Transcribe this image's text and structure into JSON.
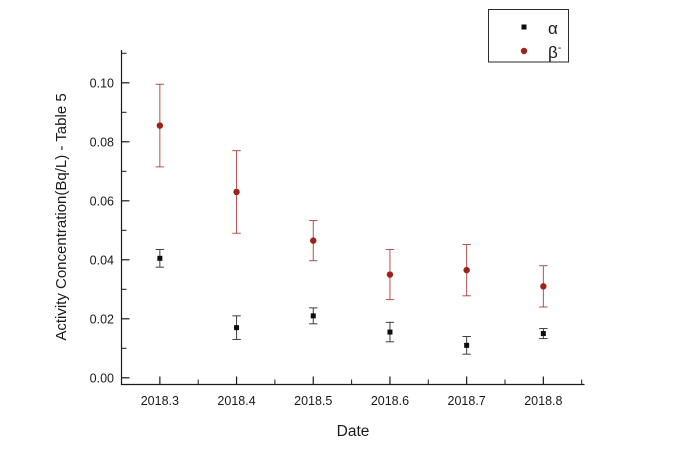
{
  "figure": {
    "background": "#ffffff",
    "axis_color": "#1a1a1a",
    "alpha_marker_color": "#0d0d0d",
    "alpha_error_color": "#3f3f3f",
    "beta_marker_color": "#9e211b",
    "beta_error_color": "#b0524a"
  },
  "chart_data": {
    "type": "scatter",
    "title": "",
    "xlabel": "Date",
    "ylabel": "Activity Concentration(Bq/L) - Table 5",
    "x_tick_labels": [
      "2018.3",
      "2018.4",
      "2018.5",
      "2018.6",
      "2018.7",
      "2018.8"
    ],
    "x_ticks": [
      2018.3,
      2018.4,
      2018.5,
      2018.6,
      2018.7,
      2018.8
    ],
    "x_minor_ticks": [
      2018.35,
      2018.45,
      2018.55,
      2018.65,
      2018.75,
      2018.85
    ],
    "y_tick_labels": [
      "0.00",
      "0.02",
      "0.04",
      "0.06",
      "0.08",
      "0.10"
    ],
    "y_ticks": [
      0.0,
      0.02,
      0.04,
      0.06,
      0.08,
      0.1
    ],
    "y_minor_ticks": [
      0.01,
      0.03,
      0.05,
      0.07,
      0.09,
      0.11
    ],
    "xlim": [
      2018.25,
      2018.855
    ],
    "ylim": [
      -0.0025,
      0.1115
    ],
    "grid": false,
    "legend_position": "top-right-outside",
    "categories": [
      2018.3,
      2018.4,
      2018.5,
      2018.6,
      2018.7,
      2018.8
    ],
    "series": [
      {
        "name": "α",
        "marker": "square",
        "color": "#0d0d0d",
        "error_color": "#3f3f3f",
        "y": [
          0.0405,
          0.017,
          0.021,
          0.0155,
          0.011,
          0.015
        ],
        "y_err": [
          0.003,
          0.004,
          0.0027,
          0.0033,
          0.003,
          0.0017
        ]
      },
      {
        "name": "β⁻",
        "marker": "circle",
        "color": "#9e211b",
        "error_color": "#b0524a",
        "y": [
          0.0855,
          0.063,
          0.0465,
          0.035,
          0.0365,
          0.031
        ],
        "y_err": [
          0.014,
          0.014,
          0.0068,
          0.0085,
          0.0087,
          0.007
        ]
      }
    ]
  },
  "legend": {
    "items": [
      {
        "label": "α",
        "sup": "",
        "marker": "square",
        "color": "#0d0d0d"
      },
      {
        "label": "β",
        "sup": "-",
        "marker": "circle",
        "color": "#9e211b"
      }
    ]
  }
}
